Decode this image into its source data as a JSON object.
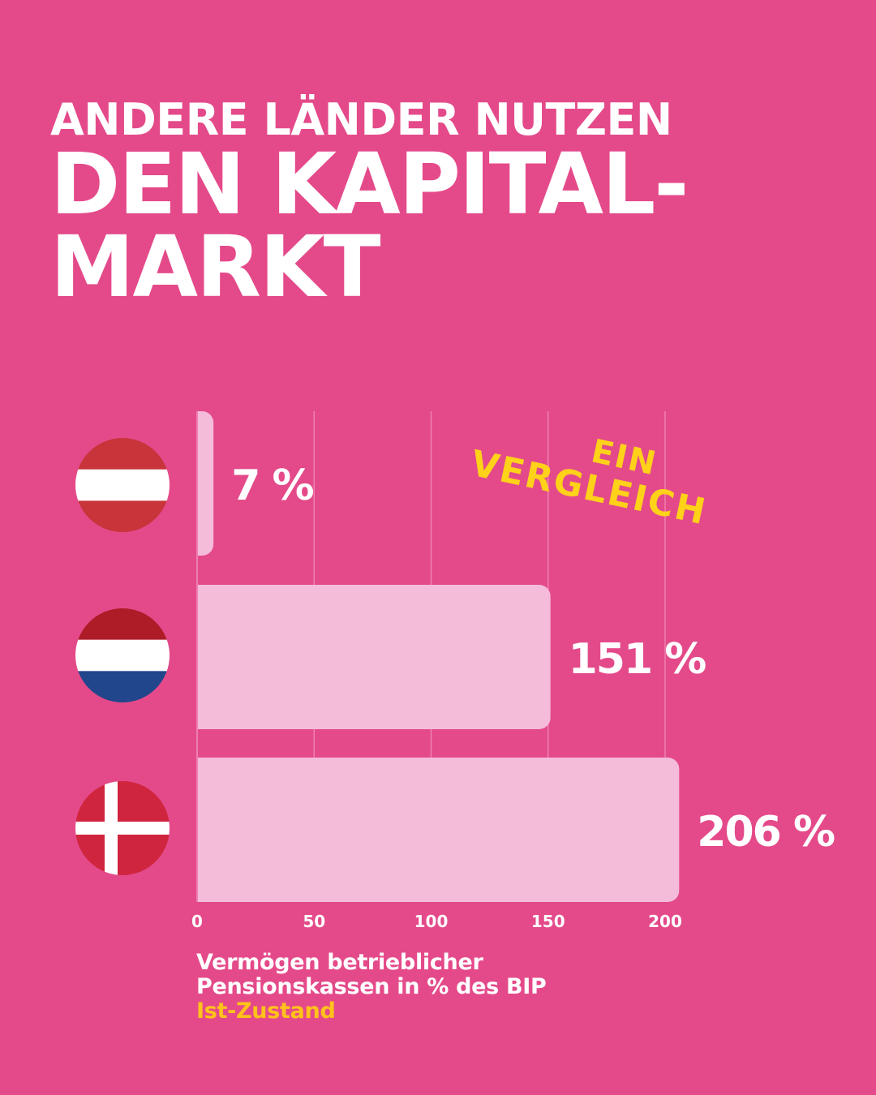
{
  "headline": {
    "line1": "ANDERE LÄNDER NUTZEN",
    "line2": "DEN KAPITAL-",
    "line3": "MARKT"
  },
  "sticker": {
    "line1": "EIN",
    "line2": "VERGLEICH"
  },
  "caption": {
    "line1": "Vermögen betrieblicher",
    "line2": "Pensionskassen in % des BIP",
    "line3": "Ist-Zustand"
  },
  "colors": {
    "background": "#e44a8a",
    "bar": "#f4bcd9",
    "label": "#ffffff",
    "accent": "#ffd21a",
    "gridline": "#ef7fb0"
  },
  "chart_data": {
    "type": "bar",
    "orientation": "horizontal",
    "categories": [
      "Österreich",
      "Niederlande",
      "Dänemark"
    ],
    "category_icons": [
      "austria-flag-icon",
      "netherlands-flag-icon",
      "denmark-flag-icon"
    ],
    "values": [
      7,
      151,
      206
    ],
    "value_labels": [
      "7 %",
      "151 %",
      "206 %"
    ],
    "xlim": [
      0,
      200
    ],
    "xticks": [
      0,
      50,
      100,
      150,
      200
    ],
    "grid": true,
    "title": "",
    "xlabel": "",
    "ylabel": ""
  }
}
